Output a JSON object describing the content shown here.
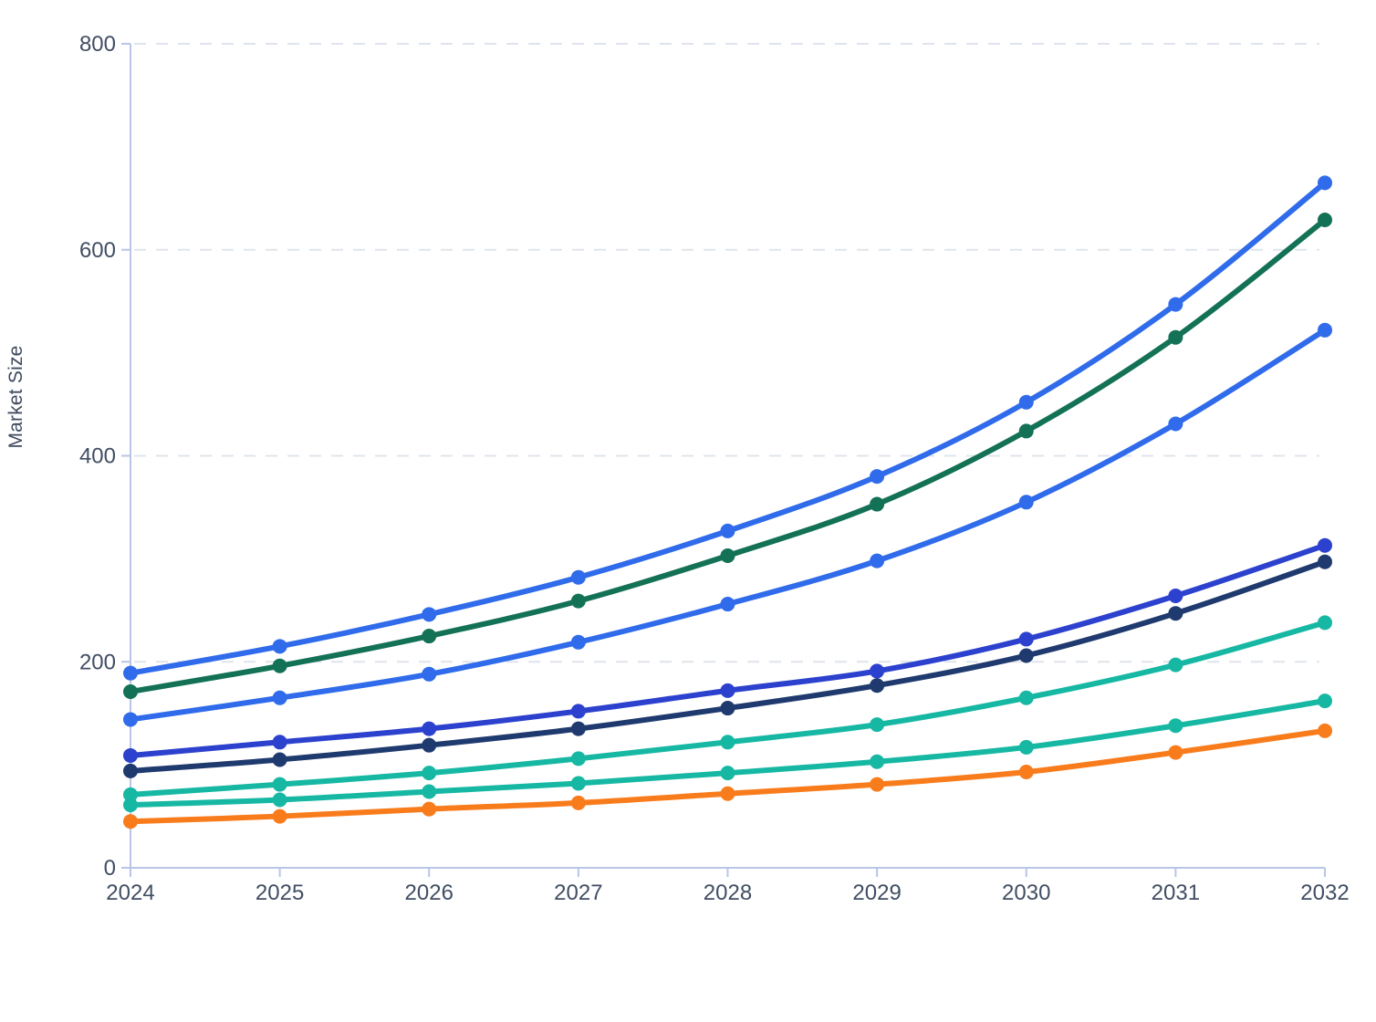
{
  "page": {
    "background": "#ffffff"
  },
  "chart_data": {
    "type": "line",
    "title": "",
    "xlabel": "",
    "ylabel": "Market Size",
    "x": [
      2024,
      2025,
      2026,
      2027,
      2028,
      2029,
      2030,
      2031,
      2032
    ],
    "y_ticks": [
      0,
      200,
      400,
      600,
      800
    ],
    "ylim": [
      0,
      800
    ],
    "grid": "horizontal-dashed",
    "legend": "none",
    "marker": "circle",
    "axis_color": "#b9c5e7",
    "grid_color": "#dfe4ec",
    "tick_label_color": "#414e63",
    "series": [
      {
        "color": "#2f6bea",
        "values": [
          189,
          215,
          246,
          282,
          327,
          380,
          452,
          547,
          665
        ]
      },
      {
        "color": "#137155",
        "values": [
          171,
          196,
          225,
          259,
          303,
          353,
          424,
          515,
          629
        ]
      },
      {
        "color": "#2f6bea",
        "values": [
          144,
          165,
          188,
          219,
          256,
          298,
          355,
          431,
          522
        ]
      },
      {
        "color": "#2c41cd",
        "values": [
          109,
          122,
          135,
          152,
          172,
          191,
          222,
          264,
          313
        ]
      },
      {
        "color": "#1f3a6e",
        "values": [
          94,
          105,
          119,
          135,
          155,
          177,
          206,
          247,
          297
        ]
      },
      {
        "color": "#16b8a3",
        "values": [
          71,
          81,
          92,
          106,
          122,
          139,
          165,
          197,
          238
        ]
      },
      {
        "color": "#16b8a3",
        "values": [
          61,
          66,
          74,
          82,
          92,
          103,
          117,
          138,
          162
        ]
      },
      {
        "color": "#f97c1c",
        "values": [
          45,
          50,
          57,
          63,
          72,
          81,
          93,
          112,
          133
        ]
      }
    ]
  }
}
